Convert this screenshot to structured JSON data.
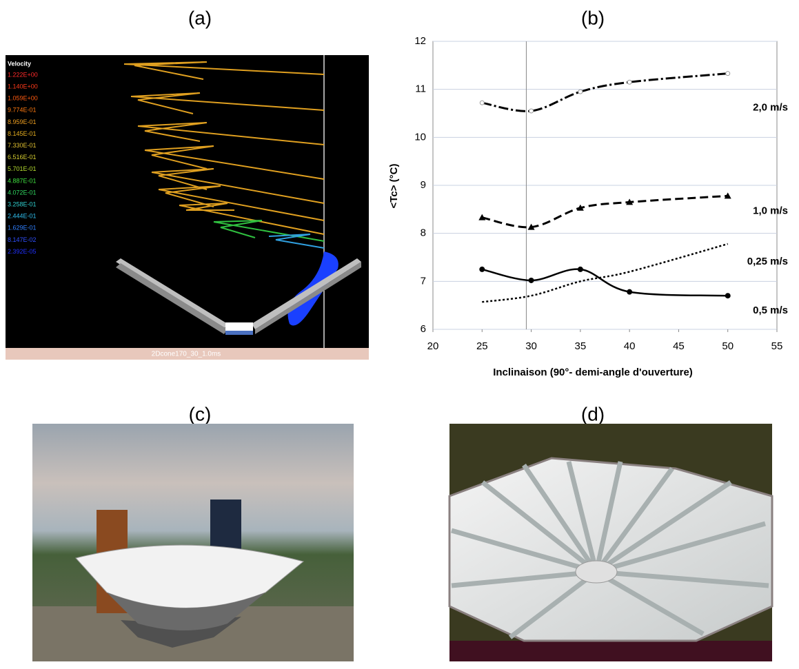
{
  "panels": {
    "a": {
      "label": "(a)",
      "legend_title": "Velocity",
      "legend": [
        {
          "label": "1.222E+00",
          "color": "#ff2a2a"
        },
        {
          "label": "1.140E+00",
          "color": "#ff3a1a"
        },
        {
          "label": "1.059E+00",
          "color": "#ff5a10"
        },
        {
          "label": "9.774E-01",
          "color": "#ff7a10"
        },
        {
          "label": "8.959E-01",
          "color": "#f0a020"
        },
        {
          "label": "8.145E-01",
          "color": "#e8b020"
        },
        {
          "label": "7.330E-01",
          "color": "#e0c030"
        },
        {
          "label": "6.516E-01",
          "color": "#d8d030"
        },
        {
          "label": "5.701E-01",
          "color": "#b8e030"
        },
        {
          "label": "4.887E-01",
          "color": "#40e040"
        },
        {
          "label": "4.072E-01",
          "color": "#30d860"
        },
        {
          "label": "3.258E-01",
          "color": "#30d0d0"
        },
        {
          "label": "2.444E-01",
          "color": "#30c0f0"
        },
        {
          "label": "1.629E-01",
          "color": "#3080ff"
        },
        {
          "label": "8.147E-02",
          "color": "#3050ff"
        },
        {
          "label": "2.392E-05",
          "color": "#2030ff"
        }
      ],
      "caption": "2Dcone170_30_1.0ms"
    },
    "b": {
      "label": "(b)"
    },
    "c": {
      "label": "(c)"
    },
    "d": {
      "label": "(d)"
    }
  },
  "chart_data": {
    "type": "line",
    "x_label": "Inclinaison (90°- demi-angle d'ouverture)",
    "y_label": "<Tc> (°C)",
    "x": [
      25,
      30,
      35,
      40,
      50
    ],
    "series": [
      {
        "name": "2,0 m/s",
        "color": "#000000",
        "dash": "dash-dot",
        "marker": "open-circle",
        "values": [
          10.72,
          10.55,
          10.95,
          11.15,
          11.33
        ]
      },
      {
        "name": "1,0 m/s",
        "color": "#000000",
        "dash": "dash",
        "marker": "triangle",
        "values": [
          8.33,
          8.13,
          8.53,
          8.65,
          8.78
        ]
      },
      {
        "name": "0,25 m/s",
        "color": "#000000",
        "dash": "dot",
        "marker": "none",
        "values": [
          6.57,
          6.7,
          7.0,
          7.2,
          7.78
        ]
      },
      {
        "name": "0,5 m/s",
        "color": "#000000",
        "dash": "solid",
        "marker": "circle",
        "values": [
          7.25,
          7.02,
          7.25,
          6.78,
          6.7
        ]
      }
    ],
    "xlim": [
      20,
      55
    ],
    "xticks": [
      20,
      25,
      30,
      35,
      40,
      45,
      50,
      55
    ],
    "ylim": [
      6,
      12
    ],
    "yticks": [
      6,
      7,
      8,
      9,
      10,
      11,
      12
    ],
    "grid": true,
    "vline_x": 29.5
  }
}
